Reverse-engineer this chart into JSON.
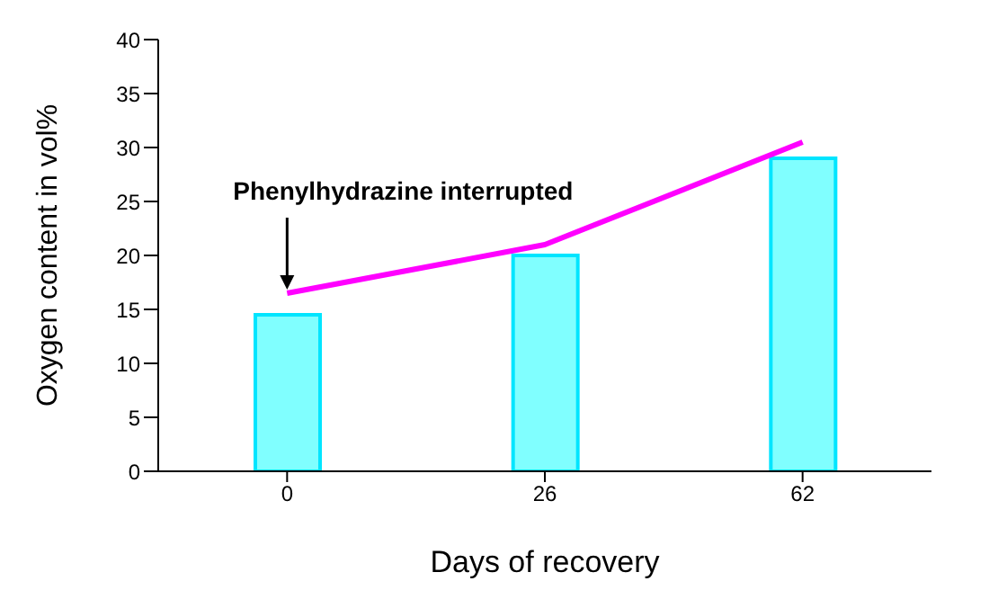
{
  "chart_data": {
    "type": "bar",
    "xlabel": "Days of recovery",
    "ylabel": "Oxygen content in vol%",
    "categories": [
      "0",
      "26",
      "62"
    ],
    "series": [
      {
        "color": "#80ffff",
        "values": [
          14.5,
          20,
          29
        ]
      },
      {
        "type": "line",
        "color": "#ff00ff",
        "values": [
          16.5,
          21,
          30.5
        ]
      }
    ],
    "ylim": [
      0,
      40
    ],
    "yticks": [
      0,
      5,
      10,
      15,
      20,
      25,
      30,
      35,
      40
    ],
    "grid": false,
    "legend": false,
    "marker": "none",
    "annotations": [
      {
        "text": "Phenylhydrazine interrupted",
        "x": "0",
        "y": 16.5
      }
    ]
  }
}
